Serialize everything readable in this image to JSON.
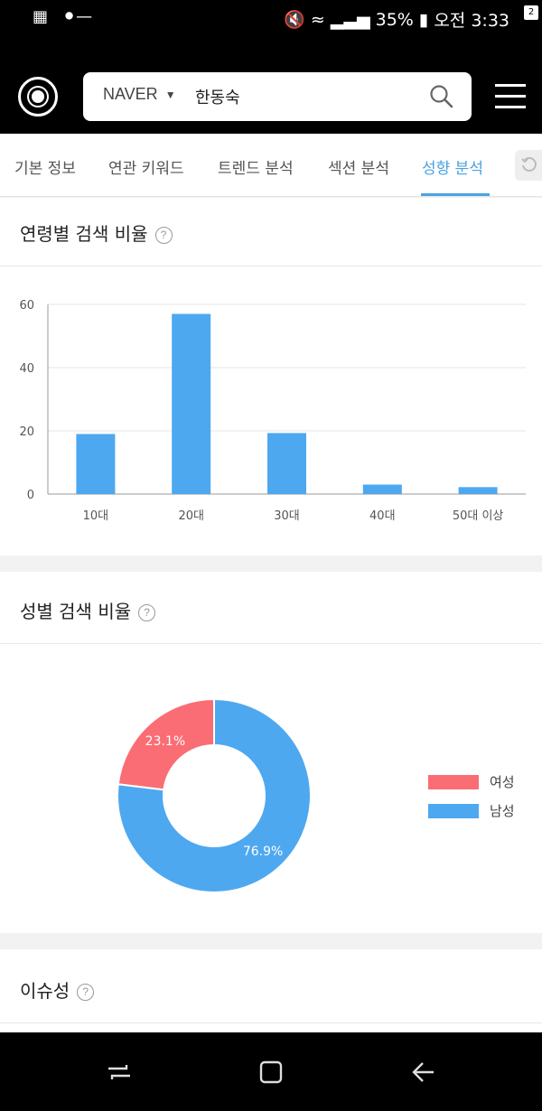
{
  "status_bar": {
    "battery": "35%",
    "time": "오전 3:33",
    "notification_count": "2"
  },
  "search": {
    "engine": "NAVER",
    "query": "한동숙"
  },
  "tabs": [
    {
      "label": "기본 정보",
      "active": false
    },
    {
      "label": "연관 키워드",
      "active": false
    },
    {
      "label": "트렌드 분석",
      "active": false
    },
    {
      "label": "섹션 분석",
      "active": false
    },
    {
      "label": "성향 분석",
      "active": true
    }
  ],
  "age_section": {
    "title": "연령별 검색 비율"
  },
  "gender_section": {
    "title": "성별 검색 비율"
  },
  "issue_section": {
    "title": "이슈성"
  },
  "colors": {
    "accent": "#4aa3df",
    "bar": "#4ea8f0",
    "female": "#fa6d74",
    "male": "#4ea8f0"
  },
  "chart_data": [
    {
      "type": "bar",
      "title": "",
      "categories": [
        "10대",
        "20대",
        "30대",
        "40대",
        "50대 이상"
      ],
      "values": [
        19,
        57,
        19.3,
        3,
        2.2
      ],
      "ylim": [
        0,
        60
      ],
      "yticks": [
        "0",
        "20",
        "40",
        "60"
      ],
      "grid": true
    },
    {
      "type": "pie",
      "title": "",
      "donut": true,
      "labels": [
        "여성",
        "남성"
      ],
      "values": [
        23.1,
        76.9
      ],
      "value_labels": [
        "23.1%",
        "76.9%"
      ],
      "legend": "right"
    }
  ]
}
